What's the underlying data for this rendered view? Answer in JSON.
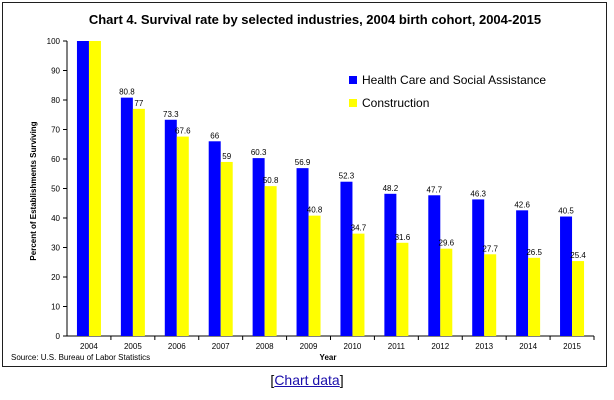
{
  "chart_data": {
    "type": "bar",
    "title": "Chart 4. Survival rate by selected industries, 2004 birth cohort, 2004-2015",
    "xlabel": "Year",
    "ylabel": "Percent of Establishments Surviving",
    "ylim": [
      0,
      100
    ],
    "yticks": [
      0,
      10,
      20,
      30,
      40,
      50,
      60,
      70,
      80,
      90,
      100
    ],
    "grid": false,
    "legend_position": "top-right",
    "categories": [
      "2004",
      "2005",
      "2006",
      "2007",
      "2008",
      "2009",
      "2010",
      "2011",
      "2012",
      "2013",
      "2014",
      "2015"
    ],
    "series": [
      {
        "name": "Health Care and Social Assistance",
        "color": "#0000ff",
        "values": [
          100,
          80.8,
          73.3,
          66,
          60.3,
          56.9,
          52.3,
          48.2,
          47.7,
          46.3,
          42.6,
          40.5
        ],
        "labels": [
          "",
          "80.8",
          "73.3",
          "66",
          "60.3",
          "56.9",
          "52.3",
          "48.2",
          "47.7",
          "46.3",
          "42.6",
          "40.5"
        ]
      },
      {
        "name": "Construction",
        "color": "#ffff00",
        "values": [
          100,
          77,
          67.6,
          59,
          50.8,
          40.8,
          34.7,
          31.6,
          29.6,
          27.7,
          26.5,
          25.4
        ],
        "labels": [
          "",
          "77",
          "67.6",
          "59",
          "50.8",
          "40.8",
          "34.7",
          "31.6",
          "29.6",
          "27.7",
          "26.5",
          "25.4"
        ]
      }
    ],
    "source": "Source: U.S. Bureau of Labor Statistics"
  },
  "footer": {
    "bracket_open": "[",
    "link_text": "Chart data",
    "bracket_close": "]"
  }
}
